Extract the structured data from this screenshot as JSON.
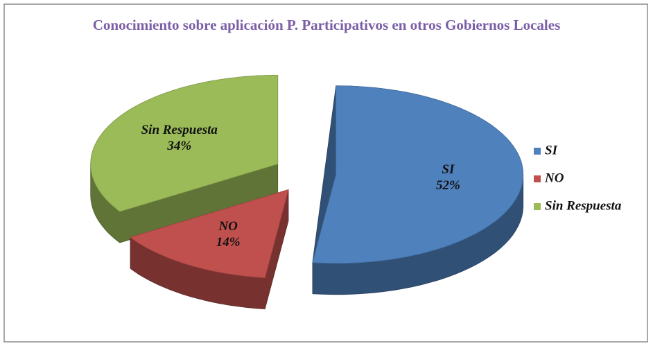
{
  "chart_data": {
    "type": "pie",
    "title": "Conocimiento sobre aplicación P. Participativos  en otros Gobiernos Locales",
    "categories": [
      "SI",
      "NO",
      "Sin Respuesta"
    ],
    "values": [
      52,
      14,
      34
    ],
    "value_labels": [
      "52%",
      "14%",
      "34%"
    ],
    "colors": [
      "#4f81bd",
      "#c0504d",
      "#9bbb59"
    ],
    "legend": "right"
  }
}
